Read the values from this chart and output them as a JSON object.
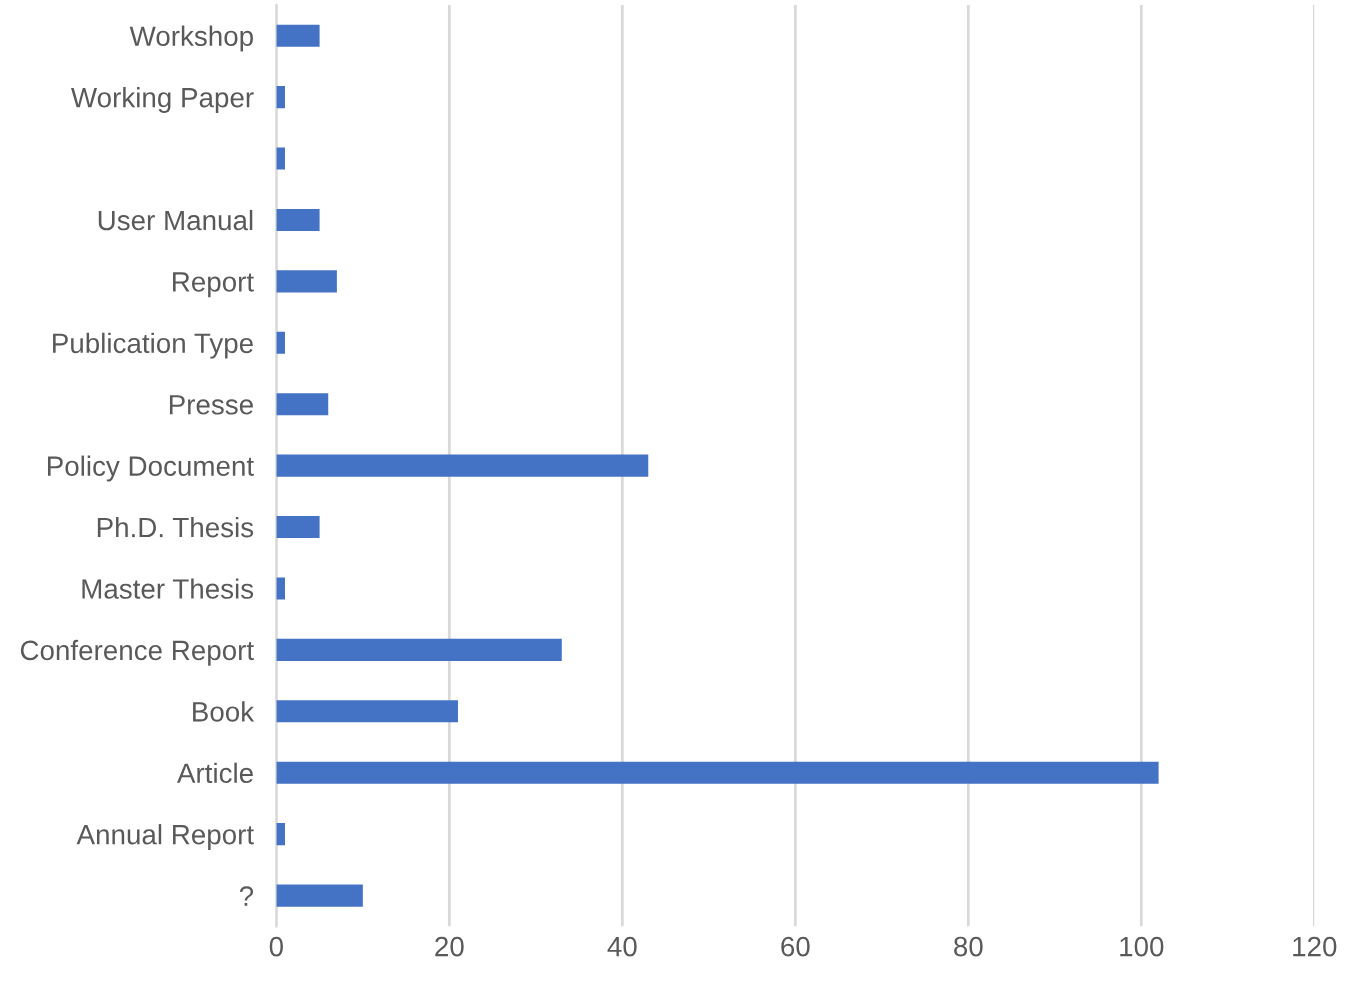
{
  "chart_data": {
    "type": "bar",
    "orientation": "horizontal",
    "categories": [
      "Workshop",
      "Working Paper",
      null,
      "User Manual",
      "Report",
      "Publication Type",
      "Presse",
      "Policy Document",
      "Ph.D. Thesis",
      "Master Thesis",
      "Conference Report",
      "Book",
      "Article",
      "Annual Report",
      "?"
    ],
    "values": [
      5,
      1,
      1,
      5,
      7,
      1,
      6,
      43,
      5,
      1,
      33,
      21,
      102,
      1,
      10
    ],
    "color": "#4472c4",
    "xlim": [
      0,
      120
    ],
    "xticks": [
      0,
      20,
      40,
      60,
      80,
      100,
      120
    ],
    "grid": "x"
  }
}
